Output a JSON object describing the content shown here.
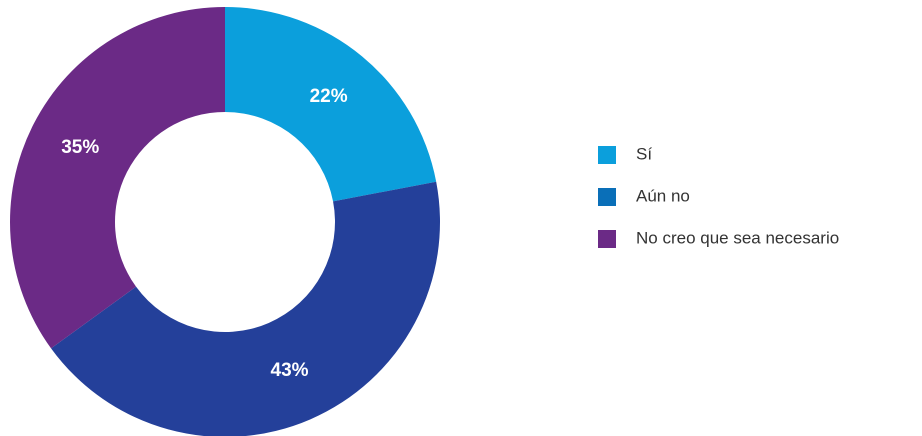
{
  "chart_data": {
    "type": "pie",
    "categories": [
      "Sí",
      "Aún no",
      "No creo que sea necesario"
    ],
    "values": [
      22,
      43,
      35
    ],
    "value_labels": [
      "22%",
      "43%",
      "35%"
    ],
    "colors": [
      "#0b9fdc",
      "#24409a",
      "#6b2a86"
    ],
    "legend_colors": [
      "#0b9fdc",
      "#0a6fb8",
      "#6b2a86"
    ],
    "donut": true,
    "legend": "right"
  }
}
